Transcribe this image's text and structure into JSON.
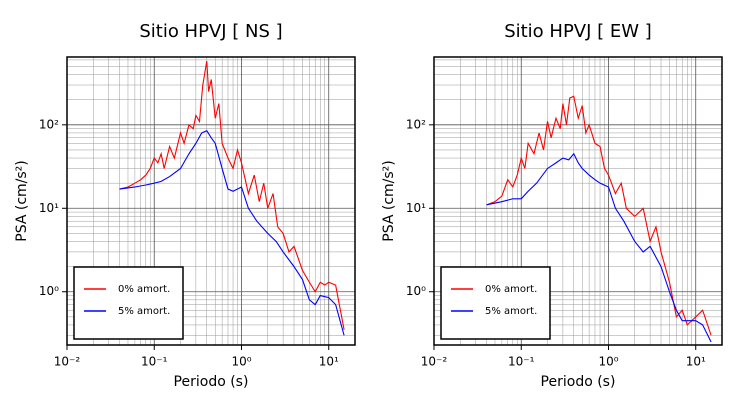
{
  "chart_data": [
    {
      "type": "line",
      "title": "Sitio HPVJ [ NS ]",
      "xlabel": "Periodo (s)",
      "ylabel": "PSA (cm/s²)",
      "log_x": true,
      "log_y": true,
      "grid": true,
      "legend": "lower left",
      "xlim": [
        0.01,
        20
      ],
      "ylim": [
        0.23,
        650
      ],
      "xticks": [
        {
          "value": 0.01,
          "label": "10⁻²"
        },
        {
          "value": 0.1,
          "label": "10⁻¹"
        },
        {
          "value": 1,
          "label": "10⁰"
        },
        {
          "value": 10,
          "label": "10¹"
        }
      ],
      "yticks": [
        {
          "value": 1,
          "label": "10⁰"
        },
        {
          "value": 10,
          "label": "10¹"
        },
        {
          "value": 100,
          "label": "10²"
        }
      ],
      "series": [
        {
          "name": "0% amort.",
          "color": "#ff0000",
          "x": [
            0.04,
            0.05,
            0.06,
            0.07,
            0.08,
            0.09,
            0.1,
            0.11,
            0.12,
            0.13,
            0.15,
            0.17,
            0.2,
            0.22,
            0.25,
            0.28,
            0.3,
            0.33,
            0.36,
            0.4,
            0.42,
            0.45,
            0.5,
            0.55,
            0.6,
            0.7,
            0.8,
            0.9,
            1.0,
            1.2,
            1.4,
            1.6,
            1.8,
            2.0,
            2.3,
            2.6,
            3.0,
            3.5,
            4,
            5,
            6,
            7,
            8,
            9,
            10,
            12,
            15
          ],
          "values": [
            17,
            18,
            20,
            22,
            25,
            30,
            40,
            35,
            45,
            30,
            55,
            40,
            80,
            60,
            100,
            90,
            130,
            110,
            300,
            580,
            250,
            350,
            120,
            180,
            60,
            40,
            30,
            50,
            35,
            15,
            25,
            12,
            20,
            10,
            15,
            6,
            5,
            3,
            3.5,
            1.8,
            1.3,
            1.0,
            1.3,
            1.2,
            1.3,
            1.2,
            0.35
          ]
        },
        {
          "name": "5% amort.",
          "color": "#0000ff",
          "x": [
            0.04,
            0.06,
            0.08,
            0.1,
            0.12,
            0.15,
            0.2,
            0.25,
            0.3,
            0.35,
            0.4,
            0.45,
            0.5,
            0.6,
            0.7,
            0.8,
            1.0,
            1.2,
            1.5,
            2,
            2.5,
            3,
            4,
            5,
            6,
            7,
            8,
            10,
            12,
            15
          ],
          "values": [
            17,
            18,
            19,
            20,
            21,
            24,
            30,
            45,
            60,
            80,
            85,
            70,
            60,
            30,
            17,
            16,
            18,
            10,
            7,
            5,
            4,
            3,
            2,
            1.4,
            0.8,
            0.7,
            0.9,
            0.85,
            0.7,
            0.3
          ]
        }
      ]
    },
    {
      "type": "line",
      "title": "Sitio HPVJ [ EW ]",
      "xlabel": "Periodo (s)",
      "ylabel": "PSA (cm/s²)",
      "log_x": true,
      "log_y": true,
      "grid": true,
      "legend": "lower left",
      "xlim": [
        0.01,
        20
      ],
      "ylim": [
        0.23,
        650
      ],
      "xticks": [
        {
          "value": 0.01,
          "label": "10⁻²"
        },
        {
          "value": 0.1,
          "label": "10⁻¹"
        },
        {
          "value": 1,
          "label": "10⁰"
        },
        {
          "value": 10,
          "label": "10¹"
        }
      ],
      "yticks": [
        {
          "value": 1,
          "label": "10⁰"
        },
        {
          "value": 10,
          "label": "10¹"
        },
        {
          "value": 100,
          "label": "10²"
        }
      ],
      "series": [
        {
          "name": "0% amort.",
          "color": "#ff0000",
          "x": [
            0.04,
            0.05,
            0.06,
            0.07,
            0.08,
            0.09,
            0.1,
            0.11,
            0.12,
            0.14,
            0.16,
            0.18,
            0.2,
            0.22,
            0.25,
            0.28,
            0.3,
            0.33,
            0.36,
            0.4,
            0.45,
            0.5,
            0.55,
            0.6,
            0.7,
            0.8,
            0.9,
            1.0,
            1.2,
            1.4,
            1.6,
            2,
            2.5,
            3,
            3.5,
            4,
            5,
            6,
            7,
            8,
            10,
            12,
            15
          ],
          "values": [
            11,
            12,
            14,
            22,
            18,
            25,
            40,
            30,
            60,
            45,
            80,
            50,
            110,
            70,
            120,
            90,
            180,
            100,
            210,
            220,
            120,
            170,
            80,
            100,
            60,
            55,
            30,
            25,
            15,
            20,
            10,
            8,
            10,
            4,
            6,
            3,
            1.3,
            0.5,
            0.6,
            0.4,
            0.5,
            0.6,
            0.3
          ]
        },
        {
          "name": "5% amort.",
          "color": "#0000ff",
          "x": [
            0.04,
            0.06,
            0.08,
            0.1,
            0.12,
            0.15,
            0.2,
            0.25,
            0.3,
            0.35,
            0.4,
            0.45,
            0.5,
            0.6,
            0.7,
            0.8,
            1.0,
            1.2,
            1.5,
            2,
            2.5,
            3,
            4,
            5,
            6,
            7,
            8,
            10,
            12,
            15
          ],
          "values": [
            11,
            12,
            13,
            13,
            16,
            20,
            30,
            35,
            40,
            38,
            45,
            35,
            30,
            25,
            22,
            20,
            18,
            10,
            7,
            4,
            3,
            3.5,
            2,
            1,
            0.6,
            0.45,
            0.45,
            0.45,
            0.4,
            0.25
          ]
        }
      ]
    }
  ]
}
